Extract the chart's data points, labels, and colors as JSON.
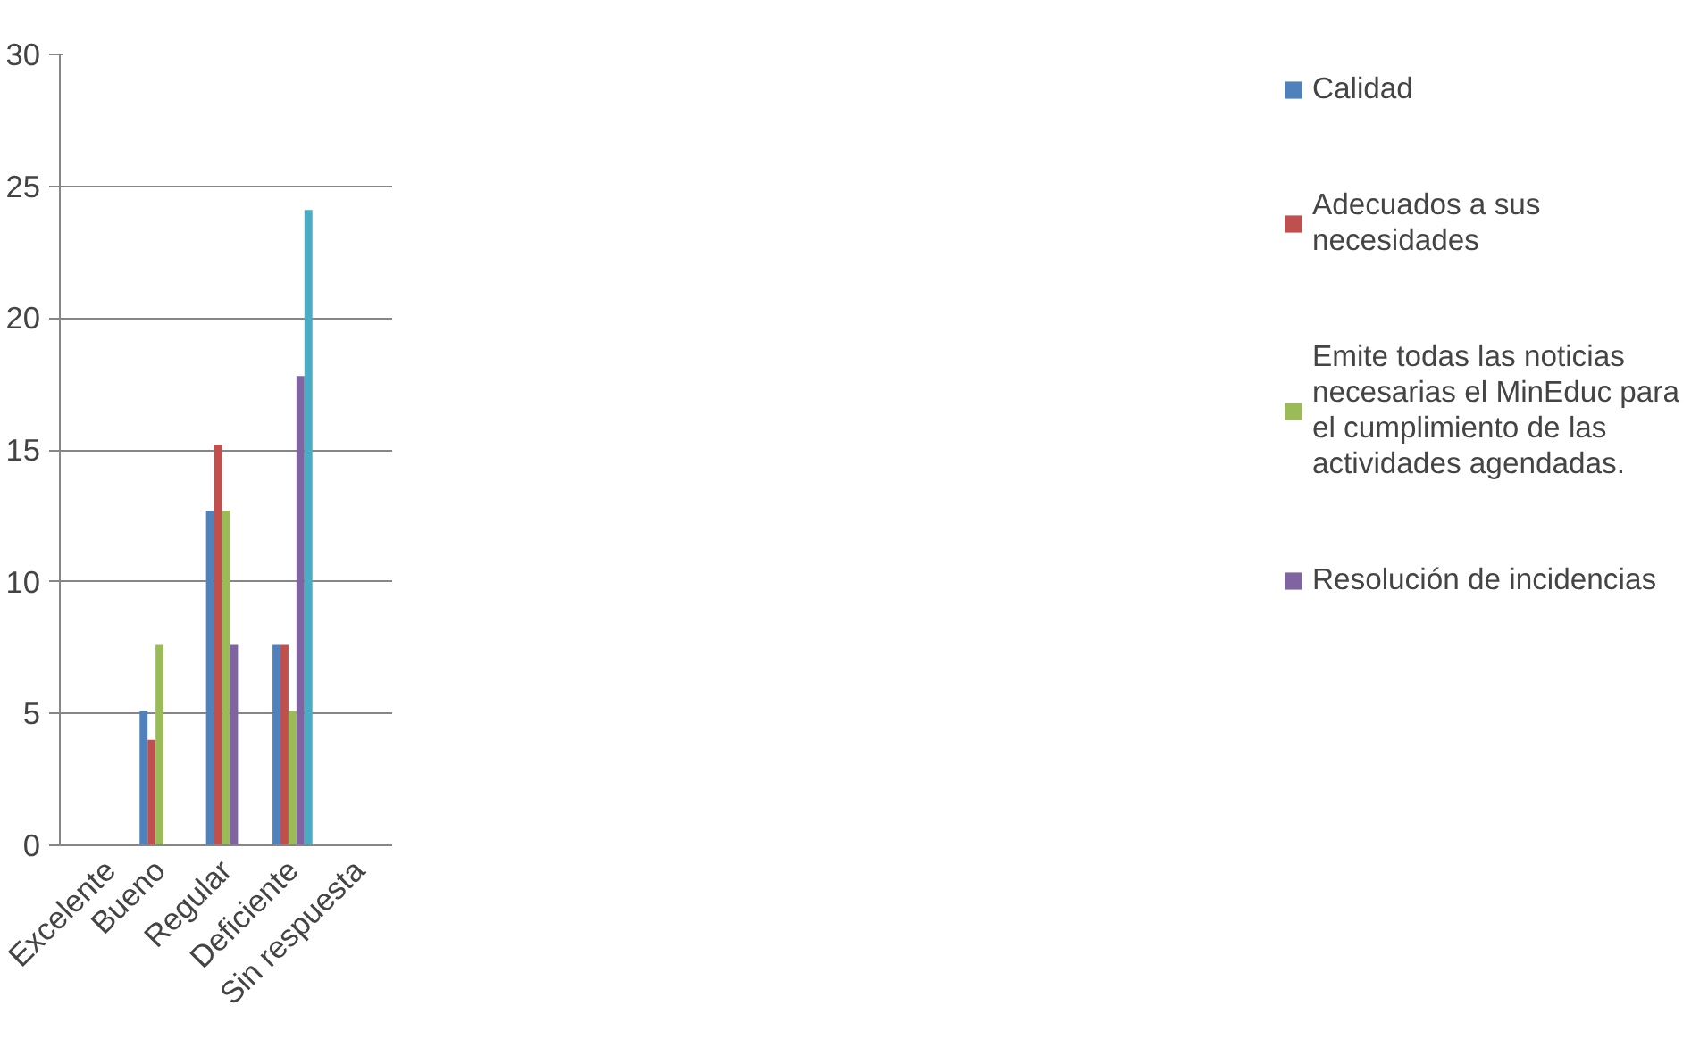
{
  "chart_data": {
    "type": "bar",
    "categories": [
      "Excelente",
      "Bueno",
      "Regular",
      "Deficiente",
      "Sin respuesta"
    ],
    "series": [
      {
        "name": "Calidad",
        "color": "#4f81bd",
        "values": [
          0,
          5.1,
          12.7,
          7.6,
          0
        ]
      },
      {
        "name": "Adecuados a sus necesidades",
        "color": "#c0504d",
        "values": [
          0,
          4,
          15.2,
          7.6,
          0
        ]
      },
      {
        "name": "Emite todas las noticias necesarias el MinEduc para el cumplimiento de las actividades agendadas.",
        "color": "#9bbb59",
        "values": [
          0,
          7.6,
          12.7,
          5.1,
          0
        ]
      },
      {
        "name": "Resolución de incidencias",
        "color": "#8064a2",
        "values": [
          0,
          0,
          7.6,
          17.8,
          0
        ]
      },
      {
        "color": "#4bacc6",
        "values": [
          0,
          0,
          0,
          24.1,
          0
        ]
      }
    ],
    "ylim": [
      0,
      30
    ],
    "yticks": [
      0,
      5,
      10,
      15,
      20,
      25,
      30
    ],
    "grid": "y",
    "legend": "right"
  }
}
